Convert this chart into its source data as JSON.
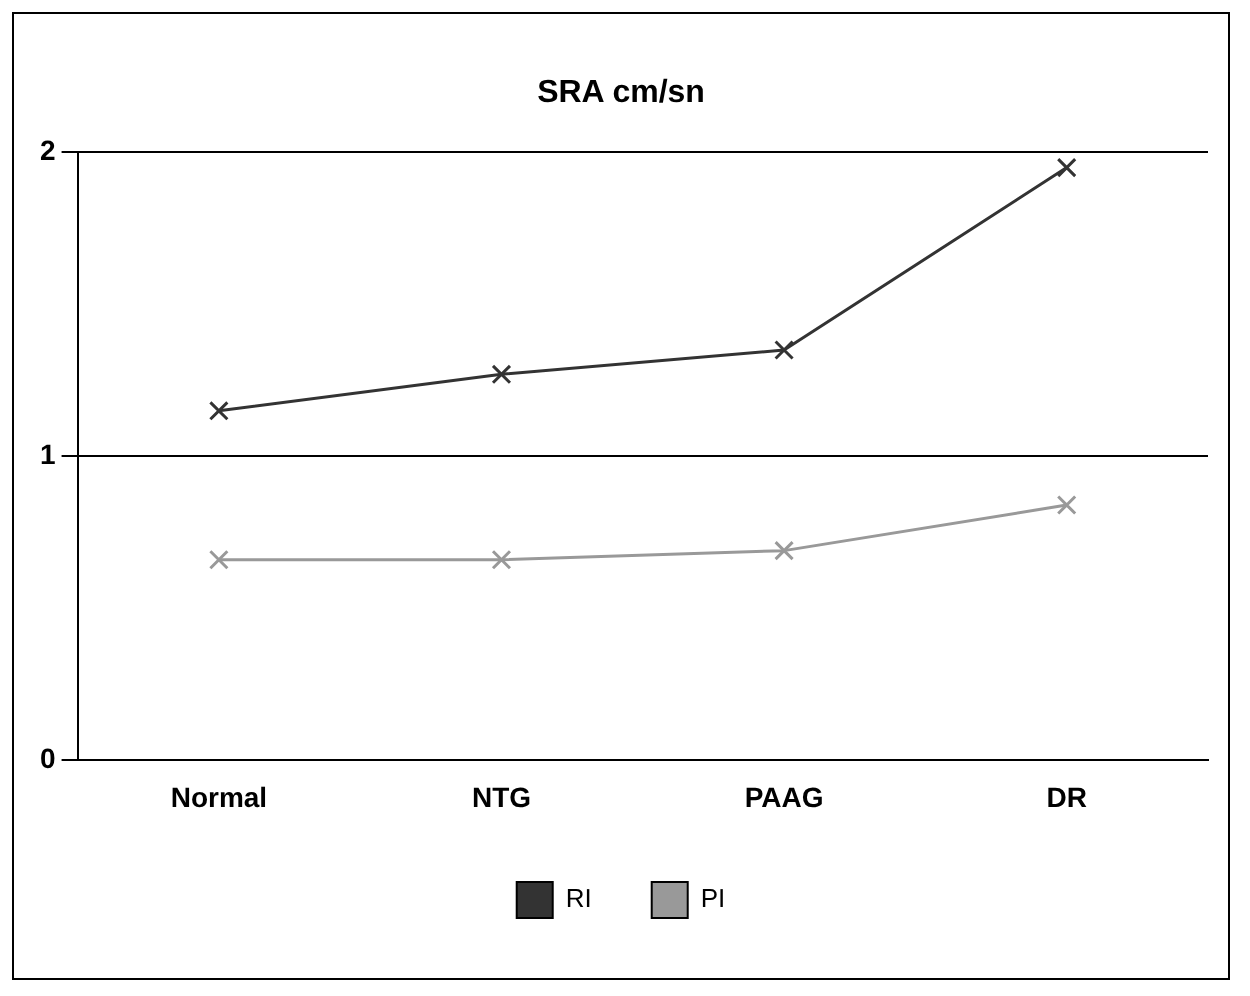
{
  "chart_data": {
    "type": "line",
    "title": "SRA cm/sn",
    "categories": [
      "Normal",
      "NTG",
      "PAAG",
      "DR"
    ],
    "series": [
      {
        "name": "RI",
        "color": "#333333",
        "values": [
          1.15,
          1.27,
          1.35,
          1.95
        ]
      },
      {
        "name": "PI",
        "color": "#999999",
        "values": [
          0.66,
          0.66,
          0.69,
          0.84
        ]
      }
    ],
    "ylim": [
      0,
      2
    ],
    "yticks": [
      0,
      1,
      2
    ],
    "grid": "y",
    "legend": "bottom",
    "marker": "cross"
  }
}
